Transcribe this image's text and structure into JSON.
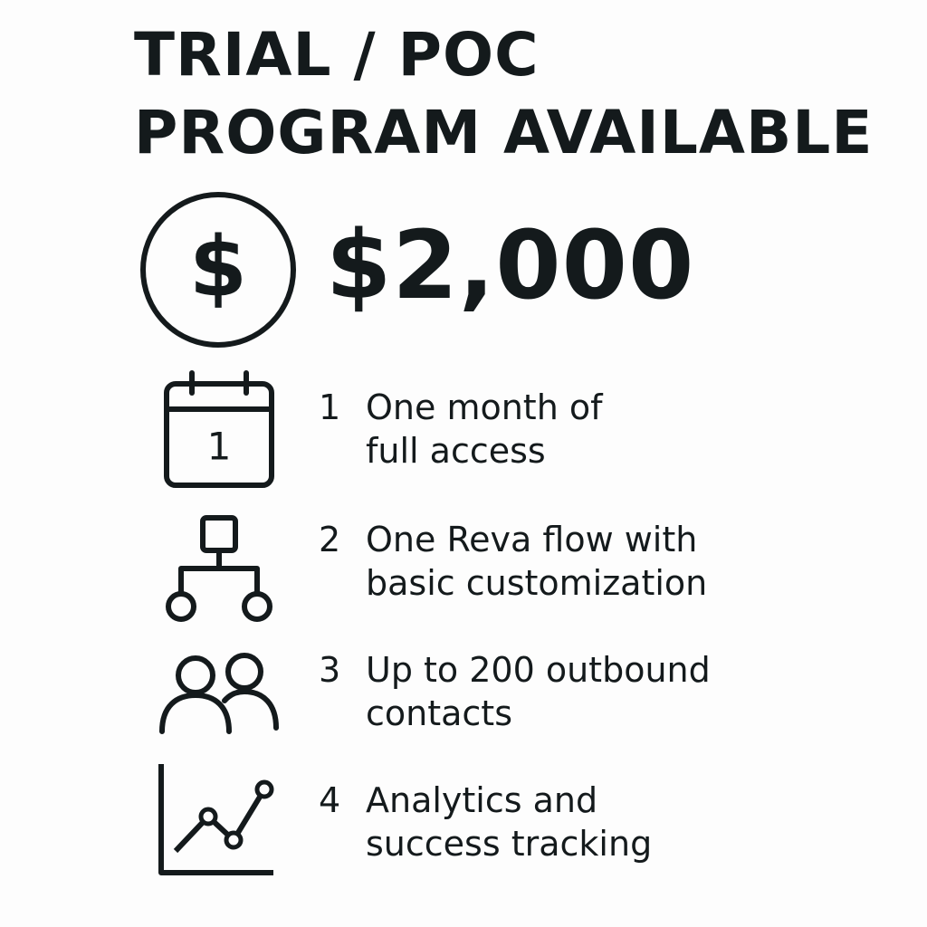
{
  "title": {
    "line1": "TRIAL / POC",
    "line2": "PROGRAM AVAILABLE"
  },
  "price": {
    "icon": "dollar-circle-icon",
    "symbol": "$",
    "amount": "$2,000"
  },
  "features": [
    {
      "number": "1",
      "icon": "calendar-icon",
      "icon_text": "1",
      "line1": "One month of",
      "line2": "full access"
    },
    {
      "number": "2",
      "icon": "flowchart-icon",
      "line1": "One Reva flow with",
      "line2": "basic customization"
    },
    {
      "number": "3",
      "icon": "users-icon",
      "line1": "Up to 200 outbound",
      "line2": "contacts"
    },
    {
      "number": "4",
      "icon": "line-chart-icon",
      "line1": "Analytics and",
      "line2": "success tracking"
    }
  ],
  "colors": {
    "background": "#fdfdfd",
    "ink": "#141a1c"
  }
}
